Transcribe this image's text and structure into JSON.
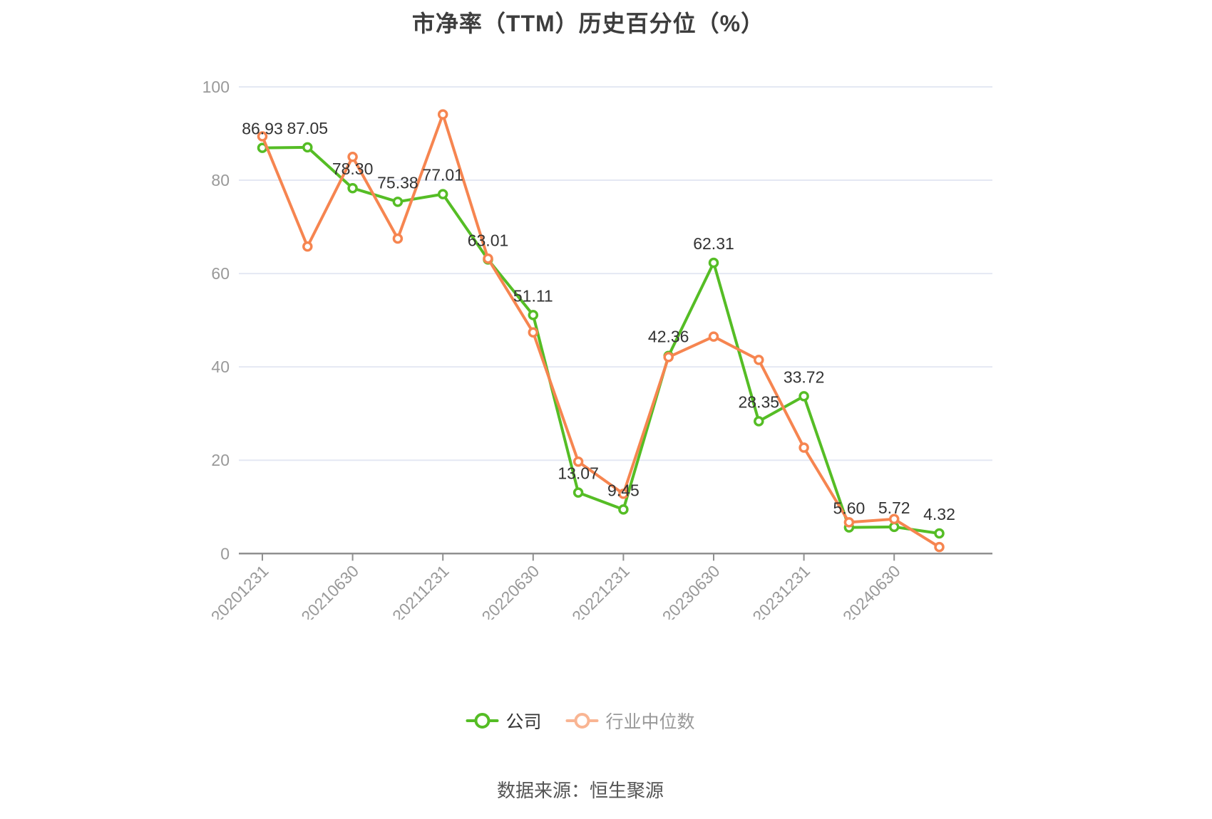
{
  "title": "市净率（TTM）历史百分位（%）",
  "source": "数据来源：恒生聚源",
  "legend": [
    {
      "label": "公司",
      "marker_color": "#55bd25",
      "text_color": "#333333"
    },
    {
      "label": "行业中位数",
      "marker_color": "#f9b593",
      "text_color": "#999999"
    }
  ],
  "colors": {
    "company_line": "#55bd25",
    "industry_line": "#f68550",
    "gridline": "#e4e8f3",
    "axis_line": "#909090",
    "tick_label": "#999999",
    "data_label": "#333333",
    "title": "#3d3d3d",
    "source": "#555555",
    "background": "#ffffff"
  },
  "chart_data": {
    "type": "line",
    "title": "市净率（TTM）历史百分位（%）",
    "xlabel": "",
    "ylabel": "",
    "ylim": [
      0,
      100
    ],
    "yticks": [
      0,
      20,
      40,
      60,
      80,
      100
    ],
    "grid": true,
    "legend_position": "bottom",
    "n_points": 16,
    "x_tick_labels": [
      "20201231",
      "20210630",
      "20211231",
      "20220630",
      "20221231",
      "20230630",
      "20231231",
      "20240630"
    ],
    "tick_every": 2,
    "series": [
      {
        "name": "公司",
        "color": "#55bd25",
        "values": [
          86.93,
          87.05,
          78.3,
          75.38,
          77.01,
          63.01,
          51.11,
          13.07,
          9.45,
          42.36,
          62.31,
          28.35,
          33.72,
          5.6,
          5.72,
          4.32
        ],
        "point_labels": [
          "86.93",
          "87.05",
          "78.30",
          "75.38",
          "77.01",
          "63.01",
          "51.11",
          "13.07",
          "9.45",
          "42.36",
          "62.31",
          "28.35",
          "33.72",
          "5.60",
          "5.72",
          "4.32"
        ]
      },
      {
        "name": "行业中位数",
        "color": "#f68550",
        "values": [
          89.4,
          65.8,
          85.0,
          67.5,
          94.1,
          63.2,
          47.4,
          19.7,
          12.8,
          42.1,
          46.5,
          41.5,
          22.7,
          6.7,
          7.4,
          1.4
        ],
        "point_labels": []
      }
    ]
  }
}
